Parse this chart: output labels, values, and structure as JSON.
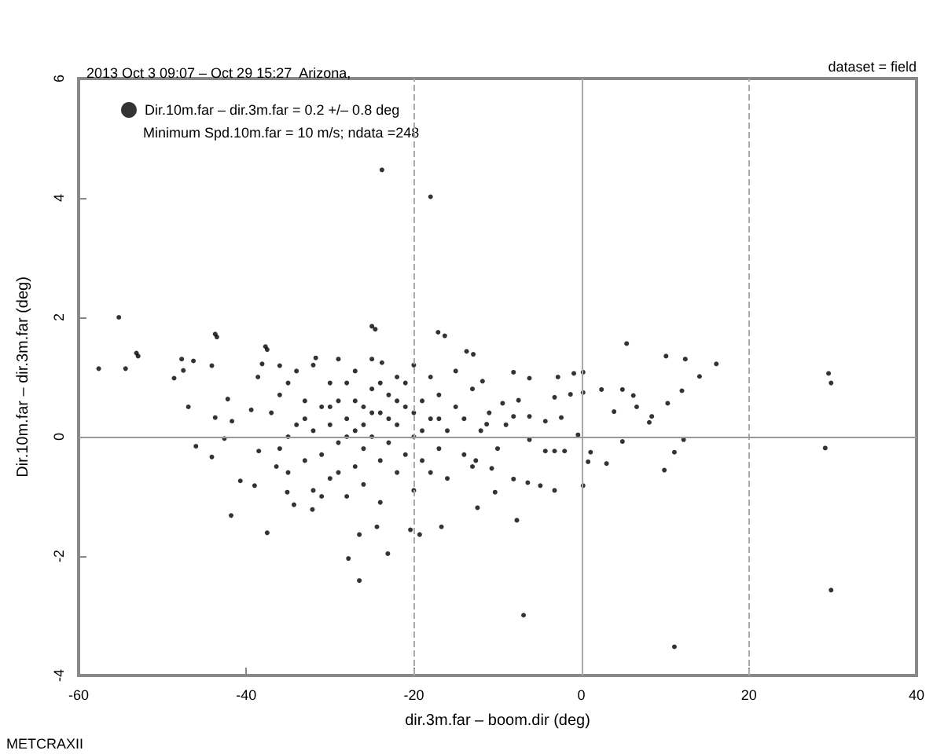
{
  "chart_data": {
    "type": "scatter",
    "title": "2013 Oct 3 09:07 – Oct 29 15:27  Arizona,",
    "xlabel": "dir.3m.far – boom.dir (deg)",
    "ylabel": "Dir.10m.far – dir.3m.far (deg)",
    "annotations": [
      "Minimum Spd.10m.far = 10 m/s; ndata =248",
      "dataset = field",
      "METCRAXII"
    ],
    "xlim": [
      -60,
      40
    ],
    "xticks": [
      -60,
      -40,
      -20,
      0,
      20,
      40
    ],
    "ylim": [
      -4,
      6
    ],
    "yticks": [
      -4,
      -2,
      0,
      2,
      4,
      6
    ],
    "grid": false,
    "legend": "top left",
    "marker": "circle",
    "ref_lines": [
      {
        "axis": "x",
        "value": -20,
        "color": "#aaaaaa",
        "line_style": "dashed"
      },
      {
        "axis": "x",
        "value": 0,
        "color": "#aaaaaa",
        "line_style": "solid"
      },
      {
        "axis": "x",
        "value": 20,
        "color": "#aaaaaa",
        "line_style": "dashed"
      },
      {
        "axis": "y",
        "value": 0,
        "color": "#999999",
        "line_style": "solid"
      }
    ],
    "series": [
      {
        "name": "Dir.10m.far – dir.3m.far = 0.2 +/– 0.8 deg",
        "color": "#000000",
        "x": [
          -55.2,
          -57.6,
          -54.4,
          -52.9,
          -23.8,
          -18,
          -25,
          -17.1,
          -43.7,
          -37.7,
          -53.1,
          -13.7,
          -48.6,
          -47.7,
          -46.3,
          -47.5,
          -44.1,
          -43.5,
          -46.9,
          -42.2,
          -43.7,
          -41.7,
          -46,
          -44.1,
          -42.6,
          -41.8,
          -40.7,
          -39,
          -37.5,
          -38.6,
          -38.1,
          -37.5,
          -36,
          -39.4,
          -38.5,
          -36.4,
          -35.1,
          -34.3,
          -32.1,
          -31.7,
          -24.6,
          -27.8,
          -26.5,
          -26.5,
          -24.4,
          -23.1,
          -20.4,
          -19.3,
          -16.7,
          -16.3,
          -12.4,
          -12.9,
          -23.8,
          5.4,
          10.1,
          12.4,
          16.1,
          14.1,
          12,
          10.3,
          8.1,
          8.4,
          6.6,
          6.2,
          4.9,
          3.9,
          2.4,
          0.2,
          0.2,
          -0.9,
          -1.3,
          -2.8,
          -3.2,
          -2.4,
          -0.4,
          4.9,
          12.2,
          11.1,
          9.9,
          3,
          0.8,
          1.1,
          0.2,
          -3.2,
          -4.9,
          -6.4,
          -8.1,
          -10.3,
          -7.7,
          -6.9,
          11.1,
          29.8,
          29.1,
          29.5,
          29.8,
          -4.3,
          -3.2,
          -2,
          -6.2,
          -4.3,
          -6.2,
          -8.1,
          -7.5,
          -6.2,
          -8.1,
          -9.4,
          -11.8,
          -11.3,
          -12.6,
          -10.7,
          -37,
          -36,
          -35,
          -35,
          -34,
          -34,
          -33,
          -33,
          -32,
          -32,
          -32,
          -31,
          -31,
          -30,
          -30,
          -30,
          -29,
          -29,
          -29,
          -28,
          -28,
          -28,
          -27,
          -27,
          -27,
          -26,
          -26,
          -26,
          -25,
          -25,
          -25,
          -24,
          -24,
          -24,
          -23,
          -23,
          -22,
          -22,
          -22,
          -21,
          -21,
          -20,
          -20,
          -20,
          -19,
          -19,
          -18,
          -18,
          -17,
          -17,
          -16,
          -16,
          -15,
          -15,
          -14,
          -14,
          -13,
          -13,
          -12,
          -11,
          -10,
          -9,
          -36,
          -31,
          -29,
          -27,
          -26,
          -24,
          -23,
          -21,
          -19,
          -18,
          -28,
          -30,
          -25,
          -22,
          -33,
          -35,
          -20,
          -17
        ],
        "values": [
          2.0,
          1.14,
          1.14,
          1.35,
          4.47,
          4.02,
          1.85,
          1.75,
          1.72,
          1.51,
          1.4,
          1.43,
          0.98,
          1.3,
          1.27,
          1.11,
          1.19,
          1.67,
          0.5,
          0.63,
          0.32,
          0.26,
          -0.16,
          -0.34,
          -0.03,
          -1.32,
          -0.74,
          -0.82,
          -1.61,
          1.0,
          1.22,
          1.46,
          1.19,
          0.45,
          -0.24,
          -0.5,
          -0.93,
          -1.14,
          -1.22,
          1.32,
          1.8,
          -2.04,
          -2.41,
          -1.64,
          -1.51,
          -1.96,
          -1.56,
          -1.64,
          -1.51,
          1.69,
          -1.19,
          1.38,
          1.24,
          1.56,
          1.35,
          1.3,
          1.22,
          1.01,
          0.77,
          0.56,
          0.24,
          0.34,
          0.5,
          0.69,
          0.79,
          0.42,
          0.79,
          0.74,
          1.08,
          1.06,
          0.71,
          1.0,
          0.66,
          0.32,
          0.03,
          -0.08,
          -0.05,
          -0.26,
          -0.56,
          -0.45,
          -0.42,
          -0.26,
          -0.82,
          -0.9,
          -0.82,
          -0.77,
          -0.71,
          -0.93,
          -1.4,
          -2.99,
          -3.52,
          -2.57,
          -0.19,
          1.06,
          0.9,
          -0.24,
          -0.24,
          -0.24,
          -0.05,
          0.26,
          0.34,
          0.34,
          0.61,
          0.98,
          1.08,
          0.56,
          0.93,
          0.21,
          -0.4,
          -0.53,
          0.4,
          -0.2,
          0.9,
          -0.6,
          0.2,
          1.1,
          -0.4,
          0.6,
          -0.9,
          0.1,
          1.2,
          0.5,
          -0.3,
          0.9,
          -0.7,
          0.2,
          1.3,
          -0.1,
          0.6,
          -1.0,
          0.3,
          0.9,
          -0.5,
          0.1,
          1.1,
          0.5,
          -0.2,
          -0.8,
          0.8,
          0.0,
          1.3,
          -0.4,
          0.4,
          -1.1,
          0.7,
          -0.1,
          1.0,
          0.2,
          -0.6,
          0.5,
          -0.3,
          1.2,
          0.0,
          -0.9,
          0.6,
          -0.4,
          0.3,
          1.0,
          -0.2,
          0.7,
          0.1,
          -0.7,
          0.5,
          1.1,
          -0.3,
          0.3,
          0.8,
          -0.5,
          0.1,
          0.4,
          -0.2,
          0.2,
          0.7,
          -1.0,
          -0.6,
          0.6,
          0.2,
          0.9,
          0.3,
          0.9,
          0.1,
          -0.6,
          0.0,
          0.5,
          0.4,
          0.6,
          0.3,
          0.0,
          0.4,
          0.3
        ]
      }
    ]
  }
}
